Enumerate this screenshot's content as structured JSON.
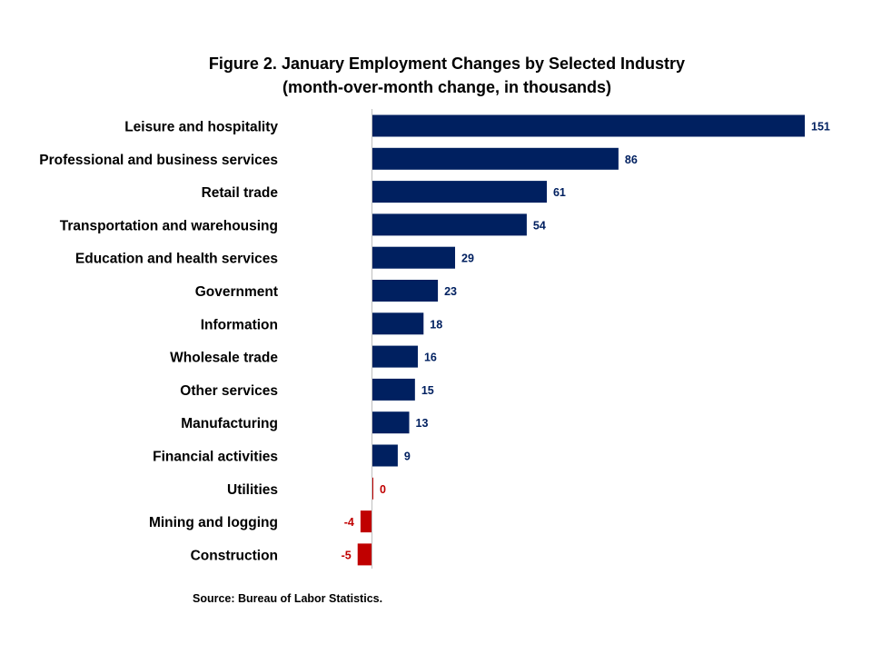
{
  "title": "Figure 2. January Employment Changes by Selected Industry",
  "subtitle": "(month-over-month  change, in thousands)",
  "source": "Source: Bureau of Labor Statistics.",
  "colors": {
    "positive": "#002060",
    "negative": "#C00000",
    "axis": "#bfbfbf"
  },
  "chart_data": {
    "type": "bar",
    "orientation": "horizontal",
    "categories": [
      "Leisure and hospitality",
      "Professional and business services",
      "Retail trade",
      "Transportation and warehousing",
      "Education and health services",
      "Government",
      "Information",
      "Wholesale trade",
      "Other services",
      "Manufacturing",
      "Financial activities",
      "Utilities",
      "Mining and logging",
      "Construction"
    ],
    "values": [
      151,
      86,
      61,
      54,
      29,
      23,
      18,
      16,
      15,
      13,
      9,
      0,
      -4,
      -5
    ],
    "data_labels": [
      "151",
      "86",
      "61",
      "54",
      "29",
      "23",
      "18",
      "16",
      "15",
      "13",
      "9",
      "0",
      "-4",
      "-5"
    ],
    "xlim": [
      -5,
      151
    ],
    "grid": false,
    "legend": "none"
  }
}
